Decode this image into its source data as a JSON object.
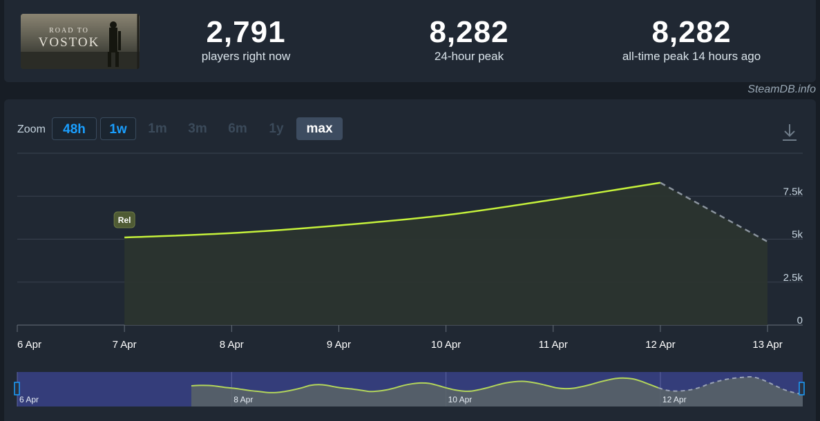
{
  "game": {
    "title_line1": "ROAD TO",
    "title_line2": "VOSTOK"
  },
  "stats": [
    {
      "value": "2,791",
      "label": "players right now"
    },
    {
      "value": "8,282",
      "label": "24-hour peak"
    },
    {
      "value": "8,282",
      "label": "all-time peak 14 hours ago"
    }
  ],
  "watermark": "SteamDB.info",
  "zoom": {
    "label": "Zoom",
    "buttons": [
      {
        "label": "48h",
        "state": "enabled"
      },
      {
        "label": "1w",
        "state": "enabled"
      },
      {
        "label": "1m",
        "state": "disabled"
      },
      {
        "label": "3m",
        "state": "disabled"
      },
      {
        "label": "6m",
        "state": "disabled"
      },
      {
        "label": "1y",
        "state": "disabled"
      },
      {
        "label": "max",
        "state": "selected"
      }
    ]
  },
  "icons": {
    "download": "download-icon"
  },
  "colors": {
    "line": "#c6f23b",
    "projection": "#8b949e",
    "navigator_line": "#b4d65a",
    "navigator_bg": "#343d7a",
    "accent": "#1a9fff"
  },
  "chart_data": {
    "type": "line",
    "x_tick_labels": [
      "6 Apr",
      "7 Apr",
      "8 Apr",
      "9 Apr",
      "10 Apr",
      "11 Apr",
      "12 Apr",
      "13 Apr"
    ],
    "y_tick_labels": [
      "0",
      "2.5k",
      "5k",
      "7.5k"
    ],
    "ylim": [
      0,
      10000
    ],
    "grid": true,
    "series": [
      {
        "x": [
          "7 Apr",
          "8 Apr",
          "9 Apr",
          "10 Apr",
          "11 Apr",
          "12 Apr"
        ],
        "values": [
          5100,
          5350,
          5800,
          6400,
          7300,
          8282
        ]
      },
      {
        "style": "dashed",
        "x": [
          "12 Apr",
          "13 Apr"
        ],
        "values": [
          8282,
          4850
        ]
      }
    ],
    "annotations": [
      {
        "x": "7 Apr",
        "label": "Rel"
      }
    ],
    "navigator": {
      "labels": [
        "6 Apr",
        "8 Apr",
        "10 Apr",
        "12 Apr"
      ],
      "values": [
        5100,
        5200,
        5180,
        5000,
        4700,
        4500,
        4200,
        3900,
        3700,
        3450,
        3450,
        3700,
        4100,
        4600,
        5200,
        5400,
        5200,
        4800,
        4500,
        4300,
        4000,
        3700,
        3800,
        4100,
        4600,
        5200,
        5600,
        5800,
        5700,
        5200,
        4600,
        4100,
        3800,
        3800,
        4200,
        4700,
        5300,
        5800,
        6100,
        6200,
        6000,
        5600,
        5100,
        4600,
        4400,
        4500,
        4900,
        5400,
        6000,
        6500,
        6900,
        7000,
        6800,
        6200,
        5400,
        4600,
        4000,
        3800,
        3900,
        4200,
        4800,
        5600,
        6200,
        6700,
        7000,
        7200,
        7300,
        6800,
        5900,
        4900,
        4000,
        3400,
        3000
      ]
    }
  }
}
